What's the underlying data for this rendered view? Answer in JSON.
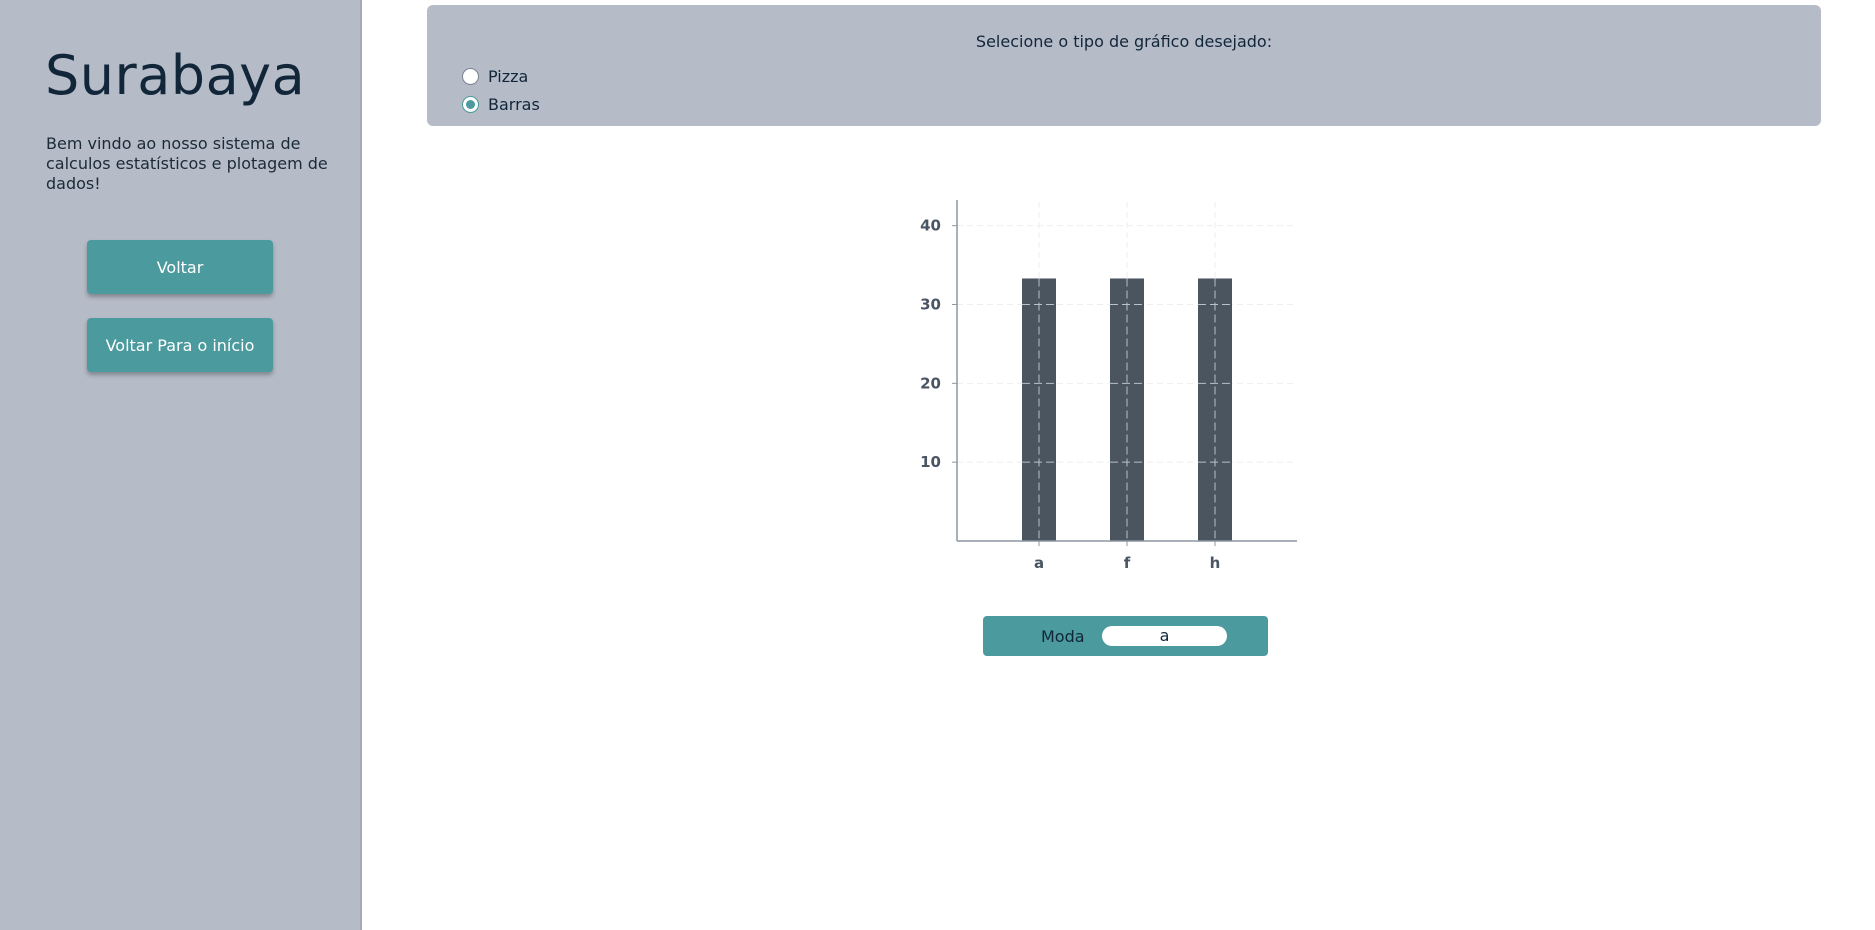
{
  "sidebar": {
    "title": "Surabaya",
    "welcome": "Bem vindo ao nosso sistema de calculos estatísticos e plotagem de dados!",
    "back_label": "Voltar",
    "home_label": "Voltar Para o início"
  },
  "selector": {
    "title": "Selecione o tipo de gráfico desejado:",
    "options": [
      {
        "label": "Pizza",
        "checked": false
      },
      {
        "label": "Barras",
        "checked": true
      }
    ]
  },
  "moda": {
    "label": "Moda",
    "value": "a"
  },
  "colors": {
    "sidebar_bg": "#b5bbc7",
    "accent": "#4b9a9d",
    "bar": "#4a5560",
    "axis": "#8d96a3"
  },
  "chart_data": {
    "type": "bar",
    "categories": [
      "a",
      "f",
      "h"
    ],
    "values": [
      33.3,
      33.3,
      33.3
    ],
    "yticks": [
      10,
      20,
      30,
      40
    ],
    "ylim": [
      0,
      43
    ],
    "grid": true,
    "title": "",
    "xlabel": "",
    "ylabel": ""
  }
}
